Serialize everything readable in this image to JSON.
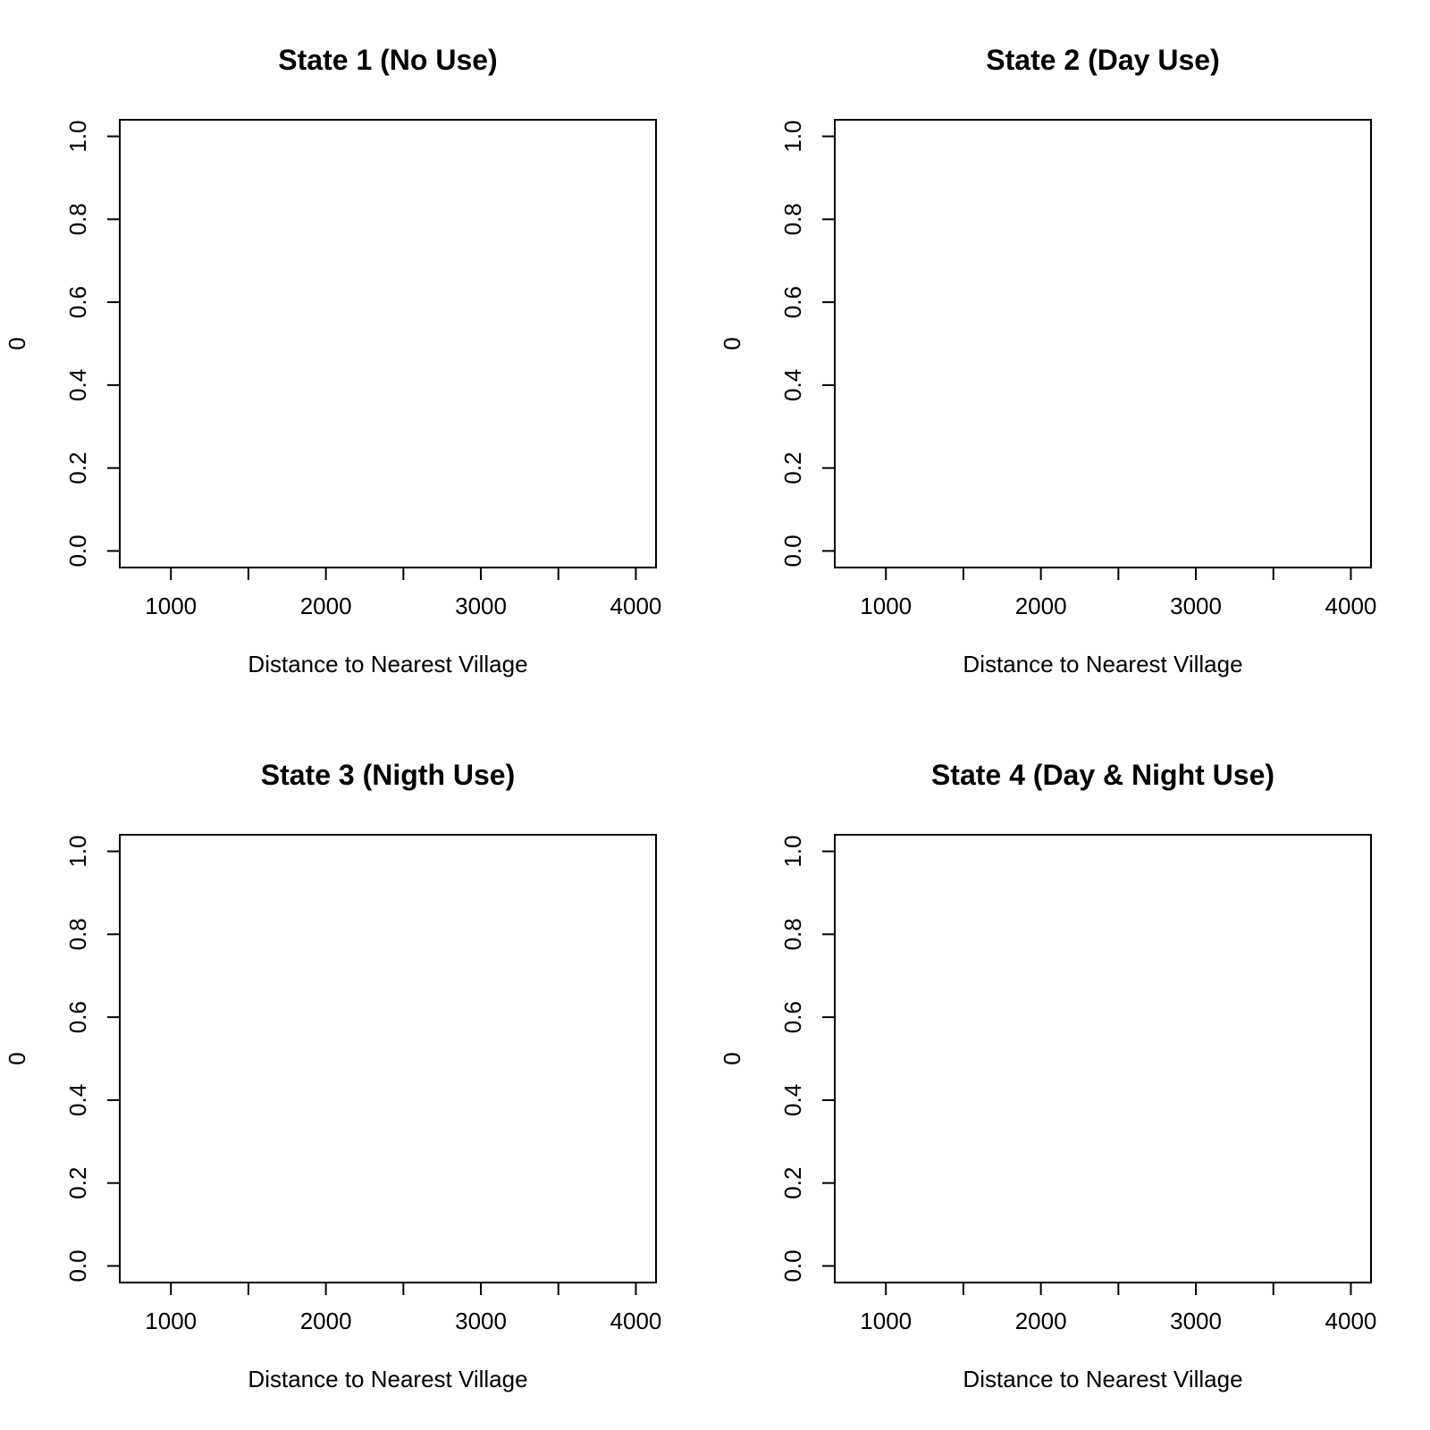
{
  "chart_data": [
    {
      "type": "line",
      "title": "State 1 (No Use)",
      "xlabel": "Distance to Nearest Village",
      "ylabel": "0",
      "xlim": [
        670,
        4130
      ],
      "ylim": [
        -0.04,
        1.04
      ],
      "xticks": [
        1000,
        1500,
        2000,
        2500,
        3000,
        3500,
        4000
      ],
      "xtick_labels": [
        "1000",
        "",
        "2000",
        "",
        "3000",
        "",
        "4000"
      ],
      "yticks": [
        0,
        0.2,
        0.4,
        0.6,
        0.8,
        1.0
      ],
      "ytick_labels": [
        "0.0",
        "0.2",
        "0.4",
        "0.6",
        "0.8",
        "1.0"
      ],
      "series": [],
      "grid": false
    },
    {
      "type": "line",
      "title": "State 2 (Day Use)",
      "xlabel": "Distance to Nearest Village",
      "ylabel": "0",
      "xlim": [
        670,
        4130
      ],
      "ylim": [
        -0.04,
        1.04
      ],
      "xticks": [
        1000,
        1500,
        2000,
        2500,
        3000,
        3500,
        4000
      ],
      "xtick_labels": [
        "1000",
        "",
        "2000",
        "",
        "3000",
        "",
        "4000"
      ],
      "yticks": [
        0,
        0.2,
        0.4,
        0.6,
        0.8,
        1.0
      ],
      "ytick_labels": [
        "0.0",
        "0.2",
        "0.4",
        "0.6",
        "0.8",
        "1.0"
      ],
      "series": [],
      "grid": false
    },
    {
      "type": "line",
      "title": "State 3 (Nigth Use)",
      "xlabel": "Distance to Nearest Village",
      "ylabel": "0",
      "xlim": [
        670,
        4130
      ],
      "ylim": [
        -0.04,
        1.04
      ],
      "xticks": [
        1000,
        1500,
        2000,
        2500,
        3000,
        3500,
        4000
      ],
      "xtick_labels": [
        "1000",
        "",
        "2000",
        "",
        "3000",
        "",
        "4000"
      ],
      "yticks": [
        0,
        0.2,
        0.4,
        0.6,
        0.8,
        1.0
      ],
      "ytick_labels": [
        "0.0",
        "0.2",
        "0.4",
        "0.6",
        "0.8",
        "1.0"
      ],
      "series": [],
      "grid": false
    },
    {
      "type": "line",
      "title": "State 4 (Day & Night Use)",
      "xlabel": "Distance to Nearest Village",
      "ylabel": "0",
      "xlim": [
        670,
        4130
      ],
      "ylim": [
        -0.04,
        1.04
      ],
      "xticks": [
        1000,
        1500,
        2000,
        2500,
        3000,
        3500,
        4000
      ],
      "xtick_labels": [
        "1000",
        "",
        "2000",
        "",
        "3000",
        "",
        "4000"
      ],
      "yticks": [
        0,
        0.2,
        0.4,
        0.6,
        0.8,
        1.0
      ],
      "ytick_labels": [
        "0.0",
        "0.2",
        "0.4",
        "0.6",
        "0.8",
        "1.0"
      ],
      "series": [],
      "grid": false
    }
  ]
}
